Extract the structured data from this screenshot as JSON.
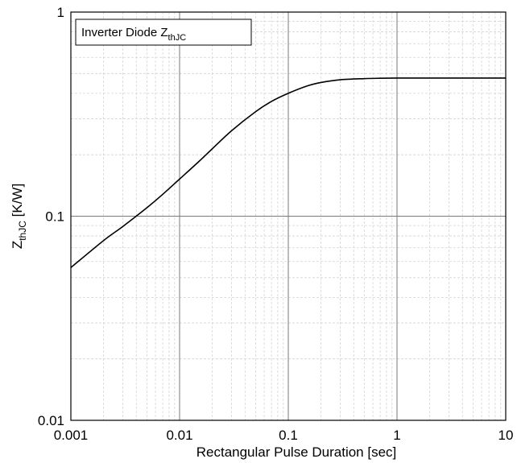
{
  "chart_data": {
    "type": "line",
    "title": "",
    "xlabel": "Rectangular Pulse Duration [sec]",
    "ylabel": {
      "main": "Z",
      "sub": "thJC",
      "unit": " [K/W]"
    },
    "x_scale": "log",
    "y_scale": "log",
    "xlim": [
      0.001,
      10
    ],
    "ylim": [
      0.01,
      1
    ],
    "grid": true,
    "x_ticks": [
      {
        "value": 0.001,
        "label": "0.001"
      },
      {
        "value": 0.01,
        "label": "0.01"
      },
      {
        "value": 0.1,
        "label": "0.1"
      },
      {
        "value": 1,
        "label": "1"
      },
      {
        "value": 10,
        "label": "10"
      }
    ],
    "y_ticks": [
      {
        "value": 0.01,
        "label": "0.01"
      },
      {
        "value": 0.1,
        "label": "0.1"
      },
      {
        "value": 1,
        "label": "1"
      }
    ],
    "legend": {
      "position": "top-left",
      "main": "Inverter Diode Z",
      "sub": "thJC"
    },
    "series": [
      {
        "color": "#000000",
        "x": [
          0.001,
          0.002,
          0.003,
          0.005,
          0.007,
          0.01,
          0.015,
          0.02,
          0.03,
          0.05,
          0.07,
          0.1,
          0.15,
          0.2,
          0.3,
          0.5,
          0.7,
          1,
          2,
          5,
          10
        ],
        "y": [
          0.056,
          0.076,
          0.089,
          0.11,
          0.128,
          0.152,
          0.185,
          0.214,
          0.262,
          0.325,
          0.365,
          0.4,
          0.435,
          0.452,
          0.466,
          0.472,
          0.474,
          0.475,
          0.475,
          0.475,
          0.475
        ]
      }
    ]
  }
}
